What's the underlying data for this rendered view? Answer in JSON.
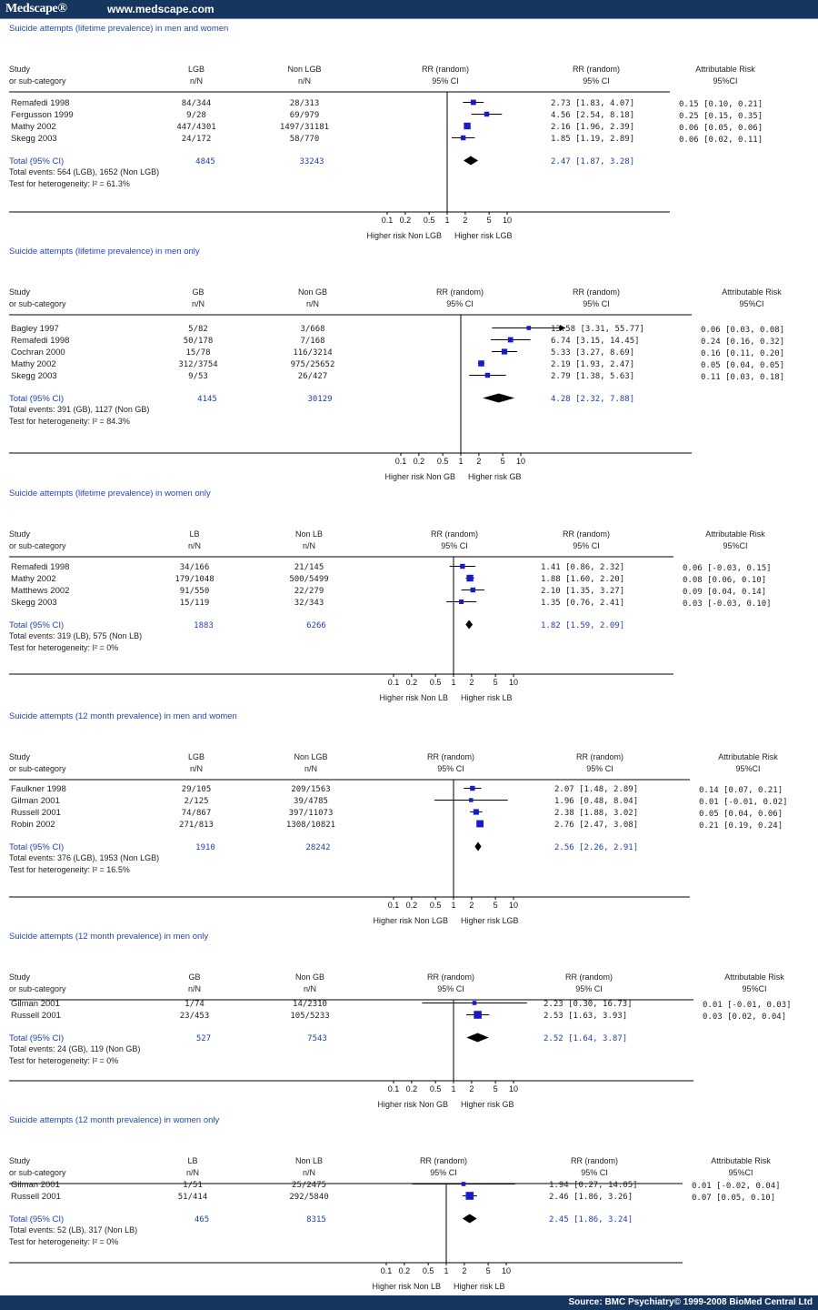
{
  "header": {
    "logo": "Medscape®",
    "url": "www.medscape.com"
  },
  "footer": {
    "source": "Source: BMC Psychiatry© 1999-2008 BioMed Central Ltd"
  },
  "chart_data": [
    {
      "type": "forest",
      "title": "Suicide attempts (lifetime prevalence) in men and women",
      "col_study": [
        "Study",
        "or sub-category"
      ],
      "col_g1": [
        "LGB",
        "n/N"
      ],
      "col_g2": [
        "Non LGB",
        "n/N"
      ],
      "col_rr": [
        "RR (random)",
        "95% CI"
      ],
      "col_rr2": [
        "RR (random)",
        "95% CI"
      ],
      "col_ar": [
        "Attributable Risk",
        "95%CI"
      ],
      "studies": [
        {
          "name": "Remafedi 1998",
          "g1": "84/344",
          "g2": "28/313",
          "rr": 2.73,
          "lo": 1.83,
          "hi": 4.07,
          "rr_text": "2.73 [1.83, 4.07]",
          "ar_text": "0.15 [0.10, 0.21]",
          "weight": 0.35
        },
        {
          "name": "Fergusson 1999",
          "g1": "9/28",
          "g2": "69/979",
          "rr": 4.56,
          "lo": 2.54,
          "hi": 8.18,
          "rr_text": "4.56 [2.54, 8.18]",
          "ar_text": "0.25 [0.15, 0.35]",
          "weight": 0.3
        },
        {
          "name": "Mathy 2002",
          "g1": "447/4301",
          "g2": "1497/31181",
          "rr": 2.16,
          "lo": 1.96,
          "hi": 2.39,
          "rr_text": "2.16 [1.96, 2.39]",
          "ar_text": "0.06 [0.05, 0.06]",
          "weight": 0.55
        },
        {
          "name": "Skegg 2003",
          "g1": "24/172",
          "g2": "58/770",
          "rr": 1.85,
          "lo": 1.19,
          "hi": 2.89,
          "rr_text": "1.85 [1.19, 2.89]",
          "ar_text": "0.06 [0.02, 0.11]",
          "weight": 0.3
        }
      ],
      "total": {
        "label": "Total (95% CI)",
        "g1": "4845",
        "g2": "33243",
        "rr": 2.47,
        "lo": 1.87,
        "hi": 3.28,
        "rr_text": "2.47 [1.87, 3.28]"
      },
      "events": "Total events: 564 (LGB), 1652 (Non LGB)",
      "heterogeneity": "Test for heterogeneity:  I² = 61.3%",
      "axis_ticks": [
        "0.1",
        "0.2",
        "0.5",
        "1",
        "2",
        "5",
        "10"
      ],
      "favours_left": "Higher risk Non LGB",
      "favours_right": "Higher risk LGB"
    },
    {
      "type": "forest",
      "title": "Suicide attempts (lifetime prevalence) in men only",
      "col_study": [
        "Study",
        "or sub-category"
      ],
      "col_g1": [
        "GB",
        "n/N"
      ],
      "col_g2": [
        "Non GB",
        "n/N"
      ],
      "col_rr": [
        "RR (random)",
        "95% CI"
      ],
      "col_rr2": [
        "RR (random)",
        "95% CI"
      ],
      "col_ar": [
        "Attributable Risk",
        "95%CI"
      ],
      "studies": [
        {
          "name": "Bagley 1997",
          "g1": "5/82",
          "g2": "3/668",
          "rr": 13.58,
          "lo": 3.31,
          "hi": 55.77,
          "rr_text": "13.58 [3.31, 55.77]",
          "ar_text": "0.06 [0.03, 0.08]",
          "weight": 0.2
        },
        {
          "name": "Remafedi 1998",
          "g1": "50/178",
          "g2": "7/168",
          "rr": 6.74,
          "lo": 3.15,
          "hi": 14.45,
          "rr_text": "6.74 [3.15, 14.45]",
          "ar_text": "0.24 [0.16, 0.32]",
          "weight": 0.35
        },
        {
          "name": "Cochran 2000",
          "g1": "15/78",
          "g2": "116/3214",
          "rr": 5.33,
          "lo": 3.27,
          "hi": 8.69,
          "rr_text": "5.33 [3.27, 8.69]",
          "ar_text": "0.16 [0.11, 0.20]",
          "weight": 0.4
        },
        {
          "name": "Mathy 2002",
          "g1": "312/3754",
          "g2": "975/25652",
          "rr": 2.19,
          "lo": 1.93,
          "hi": 2.47,
          "rr_text": "2.19 [1.93, 2.47]",
          "ar_text": "0.05 [0.04, 0.05]",
          "weight": 0.45
        },
        {
          "name": "Skegg 2003",
          "g1": "9/53",
          "g2": "26/427",
          "rr": 2.79,
          "lo": 1.38,
          "hi": 5.63,
          "rr_text": "2.79 [1.38, 5.63]",
          "ar_text": "0.11 [0.03, 0.18]",
          "weight": 0.3
        }
      ],
      "total": {
        "label": "Total (95% CI)",
        "g1": "4145",
        "g2": "30129",
        "rr": 4.28,
        "lo": 2.32,
        "hi": 7.88,
        "rr_text": "4.28 [2.32, 7.88]"
      },
      "events": "Total events: 391 (GB), 1127 (Non GB)",
      "heterogeneity": "Test for heterogeneity:  I² = 84.3%",
      "axis_ticks": [
        "0.1",
        "0.2",
        "0.5",
        "1",
        "2",
        "5",
        "10"
      ],
      "favours_left": "Higher risk Non GB",
      "favours_right": "Higher risk GB"
    },
    {
      "type": "forest",
      "title": "Suicide attempts (lifetime prevalence) in women only",
      "col_study": [
        "Study",
        "or sub-category"
      ],
      "col_g1": [
        "LB",
        "n/N"
      ],
      "col_g2": [
        "Non LB",
        "n/N"
      ],
      "col_rr": [
        "RR (random)",
        "95% CI"
      ],
      "col_rr2": [
        "RR (random)",
        "95% CI"
      ],
      "col_ar": [
        "Attributable Risk",
        "95%CI"
      ],
      "studies": [
        {
          "name": "Remafedi 1998",
          "g1": "34/166",
          "g2": "21/145",
          "rr": 1.41,
          "lo": 0.86,
          "hi": 2.32,
          "rr_text": "1.41 [0.86, 2.32]",
          "ar_text": "0.06 [-0.03, 0.15]",
          "weight": 0.3
        },
        {
          "name": "Mathy 2002",
          "g1": "179/1048",
          "g2": "500/5499",
          "rr": 1.88,
          "lo": 1.6,
          "hi": 2.2,
          "rr_text": "1.88 [1.60, 2.20]",
          "ar_text": "0.08 [0.06, 0.10]",
          "weight": 0.55
        },
        {
          "name": "Matthews 2002",
          "g1": "91/550",
          "g2": "22/279",
          "rr": 2.1,
          "lo": 1.35,
          "hi": 3.27,
          "rr_text": "2.10 [1.35, 3.27]",
          "ar_text": "0.09 [0.04, 0.14]",
          "weight": 0.3
        },
        {
          "name": "Skegg 2003",
          "g1": "15/119",
          "g2": "32/343",
          "rr": 1.35,
          "lo": 0.76,
          "hi": 2.41,
          "rr_text": "1.35 [0.76, 2.41]",
          "ar_text": "0.03 [-0.03, 0.10]",
          "weight": 0.25
        }
      ],
      "total": {
        "label": "Total (95% CI)",
        "g1": "1883",
        "g2": "6266",
        "rr": 1.82,
        "lo": 1.59,
        "hi": 2.09,
        "rr_text": "1.82 [1.59, 2.09]"
      },
      "events": "Total events: 319 (LB), 575 (Non LB)",
      "heterogeneity": "Test for heterogeneity:  I² = 0%",
      "axis_ticks": [
        "0.1",
        "0.2",
        "0.5",
        "1",
        "2",
        "5",
        "10"
      ],
      "favours_left": "Higher risk Non LB",
      "favours_right": "Higher risk LB"
    },
    {
      "type": "forest",
      "title": "Suicide attempts (12 month prevalence) in men and women",
      "col_study": [
        "Study",
        "or sub-category"
      ],
      "col_g1": [
        "LGB",
        "n/N"
      ],
      "col_g2": [
        "Non LGB",
        "n/N"
      ],
      "col_rr": [
        "RR (random)",
        "95% CI"
      ],
      "col_rr2": [
        "RR (random)",
        "95% CI"
      ],
      "col_ar": [
        "Attributable Risk",
        "95%CI"
      ],
      "studies": [
        {
          "name": "Faulkner 1998",
          "g1": "29/105",
          "g2": "209/1563",
          "rr": 2.07,
          "lo": 1.48,
          "hi": 2.89,
          "rr_text": "2.07 [1.48, 2.89]",
          "ar_text": "0.14 [0.07, 0.21]",
          "weight": 0.3
        },
        {
          "name": "Gilman 2001",
          "g1": "2/125",
          "g2": "39/4785",
          "rr": 1.96,
          "lo": 0.48,
          "hi": 8.04,
          "rr_text": "1.96 [0.48, 8.04]",
          "ar_text": "0.01 [-0.01, 0.02]",
          "weight": 0.18
        },
        {
          "name": "Russell 2001",
          "g1": "74/867",
          "g2": "397/11073",
          "rr": 2.38,
          "lo": 1.88,
          "hi": 3.02,
          "rr_text": "2.38 [1.88, 3.02]",
          "ar_text": "0.05 [0.04, 0.06]",
          "weight": 0.4
        },
        {
          "name": "Robin 2002",
          "g1": "271/813",
          "g2": "1308/10821",
          "rr": 2.76,
          "lo": 2.47,
          "hi": 3.08,
          "rr_text": "2.76 [2.47, 3.08]",
          "ar_text": "0.21 [0.19, 0.24]",
          "weight": 0.6
        }
      ],
      "total": {
        "label": "Total (95% CI)",
        "g1": "1910",
        "g2": "28242",
        "rr": 2.56,
        "lo": 2.26,
        "hi": 2.91,
        "rr_text": "2.56 [2.26, 2.91]"
      },
      "events": "Total events: 376 (LGB), 1953 (Non LGB)",
      "heterogeneity": "Test for heterogeneity:  I² = 16.5%",
      "axis_ticks": [
        "0.1",
        "0.2",
        "0.5",
        "1",
        "2",
        "5",
        "10"
      ],
      "favours_left": "Higher risk Non LGB",
      "favours_right": "Higher risk LGB"
    },
    {
      "type": "forest",
      "title": "Suicide attempts (12 month prevalence) in men only",
      "col_study": [
        "Study",
        "or sub-category"
      ],
      "col_g1": [
        "GB",
        "n/N"
      ],
      "col_g2": [
        "Non GB",
        "n/N"
      ],
      "col_rr": [
        "RR (random)",
        "95% CI"
      ],
      "col_rr2": [
        "RR (random)",
        "95% CI"
      ],
      "col_ar": [
        "Attributable Risk",
        "95%CI"
      ],
      "studies": [
        {
          "name": "Gilman 2001",
          "g1": "1/74",
          "g2": "14/2310",
          "rr": 2.23,
          "lo": 0.3,
          "hi": 16.73,
          "rr_text": "2.23 [0.30, 16.73]",
          "ar_text": "0.01 [-0.01, 0.03]",
          "weight": 0.2
        },
        {
          "name": "Russell 2001",
          "g1": "23/453",
          "g2": "105/5233",
          "rr": 2.53,
          "lo": 1.63,
          "hi": 3.93,
          "rr_text": "2.53 [1.63, 3.93]",
          "ar_text": "0.03 [0.02, 0.04]",
          "weight": 0.7
        }
      ],
      "total": {
        "label": "Total (95% CI)",
        "g1": "527",
        "g2": "7543",
        "rr": 2.52,
        "lo": 1.64,
        "hi": 3.87,
        "rr_text": "2.52 [1.64, 3.87]"
      },
      "events": "Total events: 24 (GB), 119 (Non GB)",
      "heterogeneity": "Test for heterogeneity:  I² = 0%",
      "axis_ticks": [
        "0.1",
        "0.2",
        "0.5",
        "1",
        "2",
        "5",
        "10"
      ],
      "favours_left": "Higher risk Non GB",
      "favours_right": "Higher risk GB"
    },
    {
      "type": "forest",
      "title": "Suicide attempts (12 month prevalence) in women only",
      "col_study": [
        "Study",
        "or sub-category"
      ],
      "col_g1": [
        "LB",
        "n/N"
      ],
      "col_g2": [
        "Non LB",
        "n/N"
      ],
      "col_rr": [
        "RR (random)",
        "95% CI"
      ],
      "col_rr2": [
        "RR (random)",
        "95% CI"
      ],
      "col_ar": [
        "Attributable Risk",
        "95%CI"
      ],
      "studies": [
        {
          "name": "Gilman 2001",
          "g1": "1/51",
          "g2": "25/2475",
          "rr": 1.94,
          "lo": 0.27,
          "hi": 14.05,
          "rr_text": "1.94 [0.27, 14.05]",
          "ar_text": "0.01 [-0.02, 0.04]",
          "weight": 0.2
        },
        {
          "name": "Russell 2001",
          "g1": "51/414",
          "g2": "292/5840",
          "rr": 2.46,
          "lo": 1.86,
          "hi": 3.26,
          "rr_text": "2.46 [1.86, 3.26]",
          "ar_text": "0.07 [0.05, 0.10]",
          "weight": 0.7
        }
      ],
      "total": {
        "label": "Total (95% CI)",
        "g1": "465",
        "g2": "8315",
        "rr": 2.45,
        "lo": 1.86,
        "hi": 3.24,
        "rr_text": "2.45 [1.86, 3.24]"
      },
      "events": "Total events: 52 (LB), 317 (Non LB)",
      "heterogeneity": "Test for heterogeneity:  I² = 0%",
      "axis_ticks": [
        "0.1",
        "0.2",
        "0.5",
        "1",
        "2",
        "5",
        "10"
      ],
      "favours_left": "Higher risk Non LB",
      "favours_right": "Higher risk LB"
    }
  ],
  "colors": {
    "header_bg": "#16355f",
    "marker": "#1a1acd",
    "title": "#2346b5",
    "total_text": "#2040b0"
  }
}
